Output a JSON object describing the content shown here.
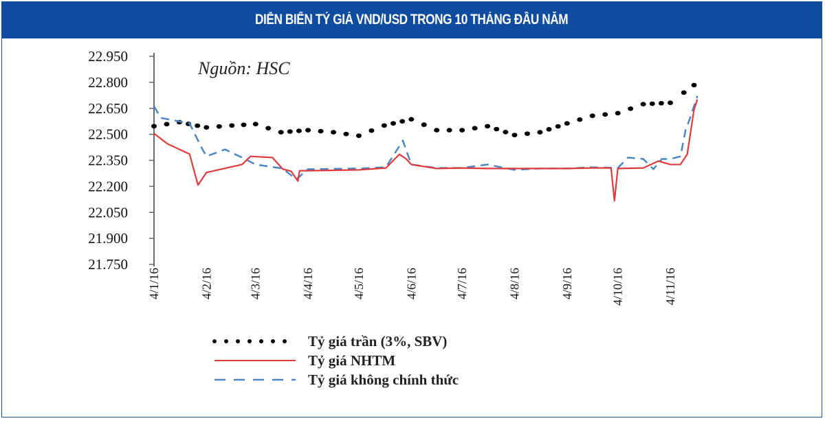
{
  "header": {
    "title": "DIỄN BIẾN TỶ GIÁ VND/USD TRONG 10 THÁNG ĐẦU NĂM"
  },
  "chart_data": {
    "type": "line",
    "title": "DIỄN BIẾN TỶ GIÁ VND/USD TRONG 10 THÁNG ĐẦU NĂM",
    "annotation": "Nguồn: HSC",
    "xlabel": "",
    "ylabel": "",
    "ylim": [
      21750,
      22950
    ],
    "yticks": [
      "22.950",
      "22.800",
      "22.650",
      "22.500",
      "22.350",
      "22.200",
      "22.050",
      "21.900",
      "21.750"
    ],
    "ytick_values": [
      22950,
      22800,
      22650,
      22500,
      22350,
      22200,
      22050,
      21900,
      21750
    ],
    "xticks": [
      "4/1/16",
      "4/2/16",
      "4/3/16",
      "4/4/16",
      "4/5/16",
      "4/6/16",
      "4/7/16",
      "4/8/16",
      "4/9/16",
      "4/10/16",
      "4/11/16"
    ],
    "xtick_dates": [
      "2016-01-04",
      "2016-02-04",
      "2016-03-04",
      "2016-04-04",
      "2016-05-04",
      "2016-06-04",
      "2016-07-04",
      "2016-08-04",
      "2016-09-04",
      "2016-10-04",
      "2016-11-04"
    ],
    "grid": false,
    "legend_position": "bottom",
    "series": [
      {
        "name": "Tỷ giá trần (3%, SBV)",
        "style": "dotted",
        "color": "#000000",
        "x": [
          "2016-01-04",
          "2016-01-19",
          "2016-02-04",
          "2016-02-19",
          "2016-03-04",
          "2016-03-19",
          "2016-04-04",
          "2016-04-19",
          "2016-05-04",
          "2016-05-19",
          "2016-06-04",
          "2016-06-19",
          "2016-07-04",
          "2016-07-19",
          "2016-08-04",
          "2016-08-19",
          "2016-09-04",
          "2016-09-19",
          "2016-10-04",
          "2016-10-19",
          "2016-11-04",
          "2016-11-12",
          "2016-11-18"
        ],
        "y": [
          22547,
          22570,
          22540,
          22551,
          22559,
          22512,
          22524,
          22512,
          22492,
          22551,
          22587,
          22524,
          22524,
          22547,
          22496,
          22512,
          22563,
          22607,
          22622,
          22674,
          22682,
          22741,
          22784
        ]
      },
      {
        "name": "Tỷ giá NHTM",
        "style": "solid",
        "color": "#e0393b",
        "x": [
          "2016-01-04",
          "2016-01-12",
          "2016-01-25",
          "2016-01-30",
          "2016-02-04",
          "2016-02-25",
          "2016-03-01",
          "2016-03-14",
          "2016-03-20",
          "2016-03-25",
          "2016-03-29",
          "2016-03-30",
          "2016-04-04",
          "2016-05-04",
          "2016-05-20",
          "2016-05-28",
          "2016-06-01",
          "2016-06-04",
          "2016-06-19",
          "2016-07-04",
          "2016-07-19",
          "2016-08-04",
          "2016-08-19",
          "2016-09-04",
          "2016-09-19",
          "2016-09-30",
          "2016-10-02",
          "2016-10-04",
          "2016-10-19",
          "2016-10-28",
          "2016-11-04",
          "2016-11-10",
          "2016-11-14",
          "2016-11-18",
          "2016-11-20"
        ],
        "y": [
          22505,
          22445,
          22386,
          22208,
          22280,
          22326,
          22373,
          22366,
          22300,
          22287,
          22230,
          22290,
          22290,
          22295,
          22306,
          22385,
          22358,
          22326,
          22303,
          22306,
          22303,
          22303,
          22303,
          22303,
          22306,
          22306,
          22117,
          22303,
          22306,
          22346,
          22326,
          22326,
          22385,
          22642,
          22701
        ]
      },
      {
        "name": "Tỷ giá không chính thức",
        "style": "dashed",
        "color": "#4a86c5",
        "x": [
          "2016-01-04",
          "2016-01-08",
          "2016-01-25",
          "2016-02-01",
          "2016-02-04",
          "2016-02-15",
          "2016-02-25",
          "2016-03-04",
          "2016-03-20",
          "2016-03-28",
          "2016-04-04",
          "2016-05-04",
          "2016-05-20",
          "2016-05-30",
          "2016-06-04",
          "2016-06-19",
          "2016-07-04",
          "2016-07-19",
          "2016-08-04",
          "2016-08-19",
          "2016-09-04",
          "2016-09-19",
          "2016-10-04",
          "2016-10-10",
          "2016-10-19",
          "2016-10-25",
          "2016-10-30",
          "2016-11-04",
          "2016-11-10",
          "2016-11-13",
          "2016-11-16",
          "2016-11-20"
        ],
        "y": [
          22662,
          22595,
          22563,
          22425,
          22373,
          22413,
          22366,
          22326,
          22303,
          22240,
          22299,
          22303,
          22310,
          22464,
          22326,
          22306,
          22306,
          22326,
          22295,
          22303,
          22303,
          22310,
          22306,
          22366,
          22358,
          22299,
          22358,
          22358,
          22373,
          22524,
          22603,
          22721
        ]
      }
    ]
  }
}
